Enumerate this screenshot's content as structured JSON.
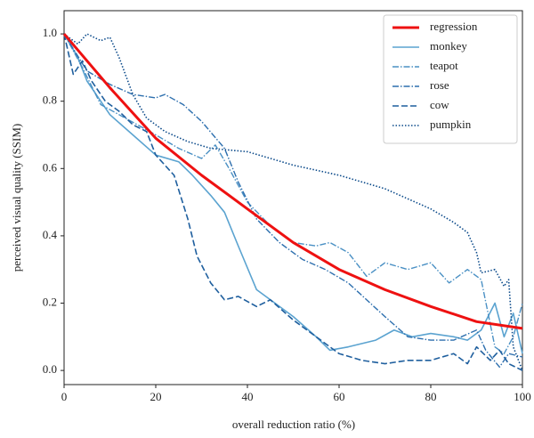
{
  "chart_data": {
    "type": "line",
    "xlabel": "overall reduction ratio (%)",
    "ylabel": "perceived visual quality (SSIM)",
    "xlim": [
      0,
      100
    ],
    "ylim": [
      -0.042,
      1.069
    ],
    "xticks": [
      0,
      20,
      40,
      60,
      80,
      100
    ],
    "yticks": [
      {
        "value": 0,
        "label": "0.0"
      },
      0.2,
      0.4,
      0.6,
      0.8,
      {
        "value": 1,
        "label": "1.0"
      }
    ],
    "legend": "upper right",
    "series": [
      {
        "name": "regression",
        "color": "#ee1111",
        "style": "solid",
        "width": 3,
        "x": [
          0,
          10,
          20,
          30,
          40,
          50,
          60,
          70,
          80,
          90,
          100
        ],
        "values": [
          1.0,
          0.84,
          0.69,
          0.58,
          0.48,
          0.38,
          0.3,
          0.24,
          0.19,
          0.145,
          0.125
        ]
      },
      {
        "name": "monkey",
        "color": "#5ba3d0",
        "style": "solid",
        "width": 1.6,
        "x": [
          0,
          3,
          5,
          8,
          10,
          15,
          20,
          25,
          28,
          32,
          35,
          38,
          42,
          46,
          50,
          55,
          58,
          62,
          68,
          72,
          76,
          80,
          85,
          88,
          91,
          94,
          96,
          98,
          100
        ],
        "values": [
          1.0,
          0.93,
          0.86,
          0.8,
          0.76,
          0.7,
          0.64,
          0.62,
          0.58,
          0.52,
          0.47,
          0.37,
          0.24,
          0.2,
          0.16,
          0.1,
          0.06,
          0.07,
          0.09,
          0.12,
          0.1,
          0.11,
          0.1,
          0.09,
          0.12,
          0.2,
          0.1,
          0.17,
          0.05
        ]
      },
      {
        "name": "teapot",
        "color": "#4a90c4",
        "style": "dashdot",
        "width": 1.4,
        "x": [
          0,
          4,
          8,
          12,
          16,
          20,
          25,
          30,
          33,
          36,
          40,
          45,
          50,
          55,
          58,
          62,
          66,
          70,
          75,
          80,
          84,
          88,
          91,
          94,
          96,
          98,
          100
        ],
        "values": [
          1.0,
          0.9,
          0.79,
          0.76,
          0.73,
          0.7,
          0.66,
          0.63,
          0.67,
          0.6,
          0.5,
          0.43,
          0.38,
          0.37,
          0.38,
          0.35,
          0.28,
          0.32,
          0.3,
          0.32,
          0.26,
          0.3,
          0.27,
          0.07,
          0.05,
          0.1,
          0.2
        ]
      },
      {
        "name": "rose",
        "color": "#2d6fae",
        "style": "dashdot",
        "width": 1.4,
        "x": [
          0,
          5,
          10,
          15,
          20,
          22,
          26,
          30,
          35,
          38,
          42,
          47,
          52,
          57,
          62,
          66,
          70,
          75,
          80,
          85,
          90,
          92,
          95,
          97,
          100
        ],
        "values": [
          1.0,
          0.89,
          0.85,
          0.82,
          0.81,
          0.82,
          0.79,
          0.74,
          0.66,
          0.56,
          0.45,
          0.38,
          0.33,
          0.3,
          0.26,
          0.21,
          0.16,
          0.1,
          0.09,
          0.09,
          0.12,
          0.06,
          0.01,
          0.05,
          0.04
        ]
      },
      {
        "name": "cow",
        "color": "#1f5f9e",
        "style": "dashed",
        "width": 1.6,
        "x": [
          0,
          2,
          4,
          6,
          9,
          12,
          15,
          18,
          20,
          24,
          27,
          29,
          32,
          35,
          38,
          42,
          45,
          50,
          55,
          60,
          65,
          70,
          75,
          80,
          85,
          88,
          90,
          93,
          95,
          97,
          100
        ],
        "values": [
          1.0,
          0.88,
          0.92,
          0.86,
          0.8,
          0.77,
          0.73,
          0.71,
          0.64,
          0.58,
          0.45,
          0.34,
          0.26,
          0.21,
          0.22,
          0.19,
          0.21,
          0.15,
          0.1,
          0.05,
          0.03,
          0.02,
          0.03,
          0.03,
          0.05,
          0.02,
          0.07,
          0.03,
          0.06,
          0.02,
          0.0
        ]
      },
      {
        "name": "pumpkin",
        "color": "#0b4a8a",
        "style": "dotted",
        "width": 1.6,
        "x": [
          0,
          3,
          5,
          8,
          10,
          12,
          15,
          18,
          22,
          27,
          32,
          40,
          50,
          60,
          70,
          80,
          85,
          88,
          90,
          91,
          94,
          96,
          97,
          98,
          100
        ],
        "values": [
          1.0,
          0.97,
          1.0,
          0.98,
          0.99,
          0.93,
          0.82,
          0.75,
          0.71,
          0.68,
          0.66,
          0.65,
          0.61,
          0.58,
          0.54,
          0.48,
          0.44,
          0.41,
          0.35,
          0.29,
          0.3,
          0.25,
          0.27,
          0.07,
          0.0
        ]
      }
    ]
  }
}
